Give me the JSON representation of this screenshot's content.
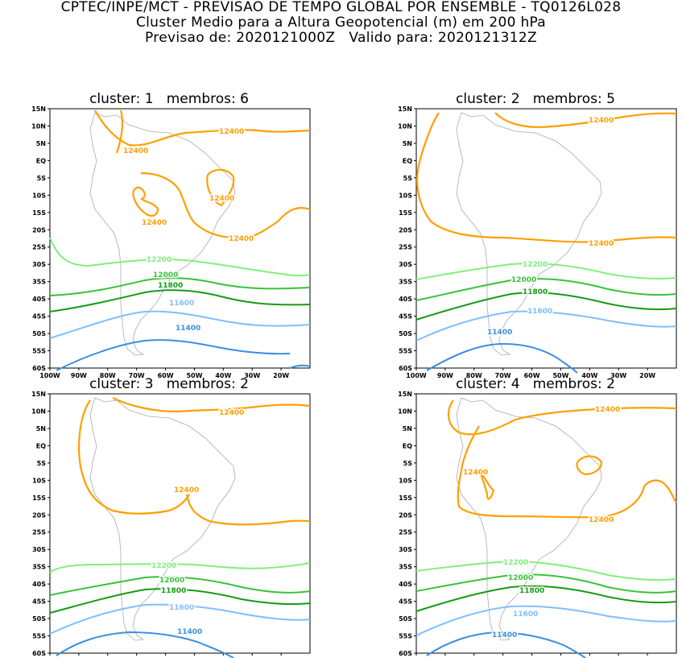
{
  "header": {
    "line1": "CPTEC/INPE/MCT - PREVISAO DE TEMPO GLOBAL POR ENSEMBLE - TQ0126L028",
    "line2": "Cluster Medio para a Altura Geopotencial (m) em 200 hPa",
    "line3": "Previsao de: 2020121000Z   Valido para: 2020121312Z"
  },
  "axes": {
    "lat_labels": [
      "15N",
      "10N",
      "5N",
      "EQ",
      "5S",
      "10S",
      "15S",
      "20S",
      "25S",
      "30S",
      "35S",
      "40S",
      "45S",
      "50S",
      "55S",
      "60S"
    ],
    "lon_labels": [
      "100W",
      "90W",
      "80W",
      "70W",
      "60W",
      "50W",
      "40W",
      "30W",
      "20W"
    ]
  },
  "colors": {
    "c12400": "#ff9f00",
    "c12200": "#7ff07a",
    "c12000": "#37c337",
    "c11800": "#149c14",
    "c11600": "#7fbfff",
    "c11400": "#3a8fe0",
    "coast": "#aaaaaa",
    "frame": "#000000"
  },
  "panels": [
    {
      "title": "cluster: 1   membros: 6",
      "labels": [
        "12400",
        "12400",
        "12400",
        "12400",
        "12400",
        "12200",
        "12000",
        "11800",
        "11600",
        "11400"
      ]
    },
    {
      "title": "cluster: 2   membros: 5",
      "labels": [
        "12400",
        "12400",
        "12200",
        "12000",
        "11800",
        "11600",
        "11400"
      ]
    },
    {
      "title": "cluster: 3   membros: 2",
      "labels": [
        "12400",
        "12400",
        "12200",
        "12000",
        "11800",
        "11600",
        "11400"
      ]
    },
    {
      "title": "cluster: 4   membros: 2",
      "labels": [
        "12400",
        "12400",
        "12400",
        "12200",
        "12000",
        "11800",
        "11600",
        "11400"
      ]
    }
  ]
}
